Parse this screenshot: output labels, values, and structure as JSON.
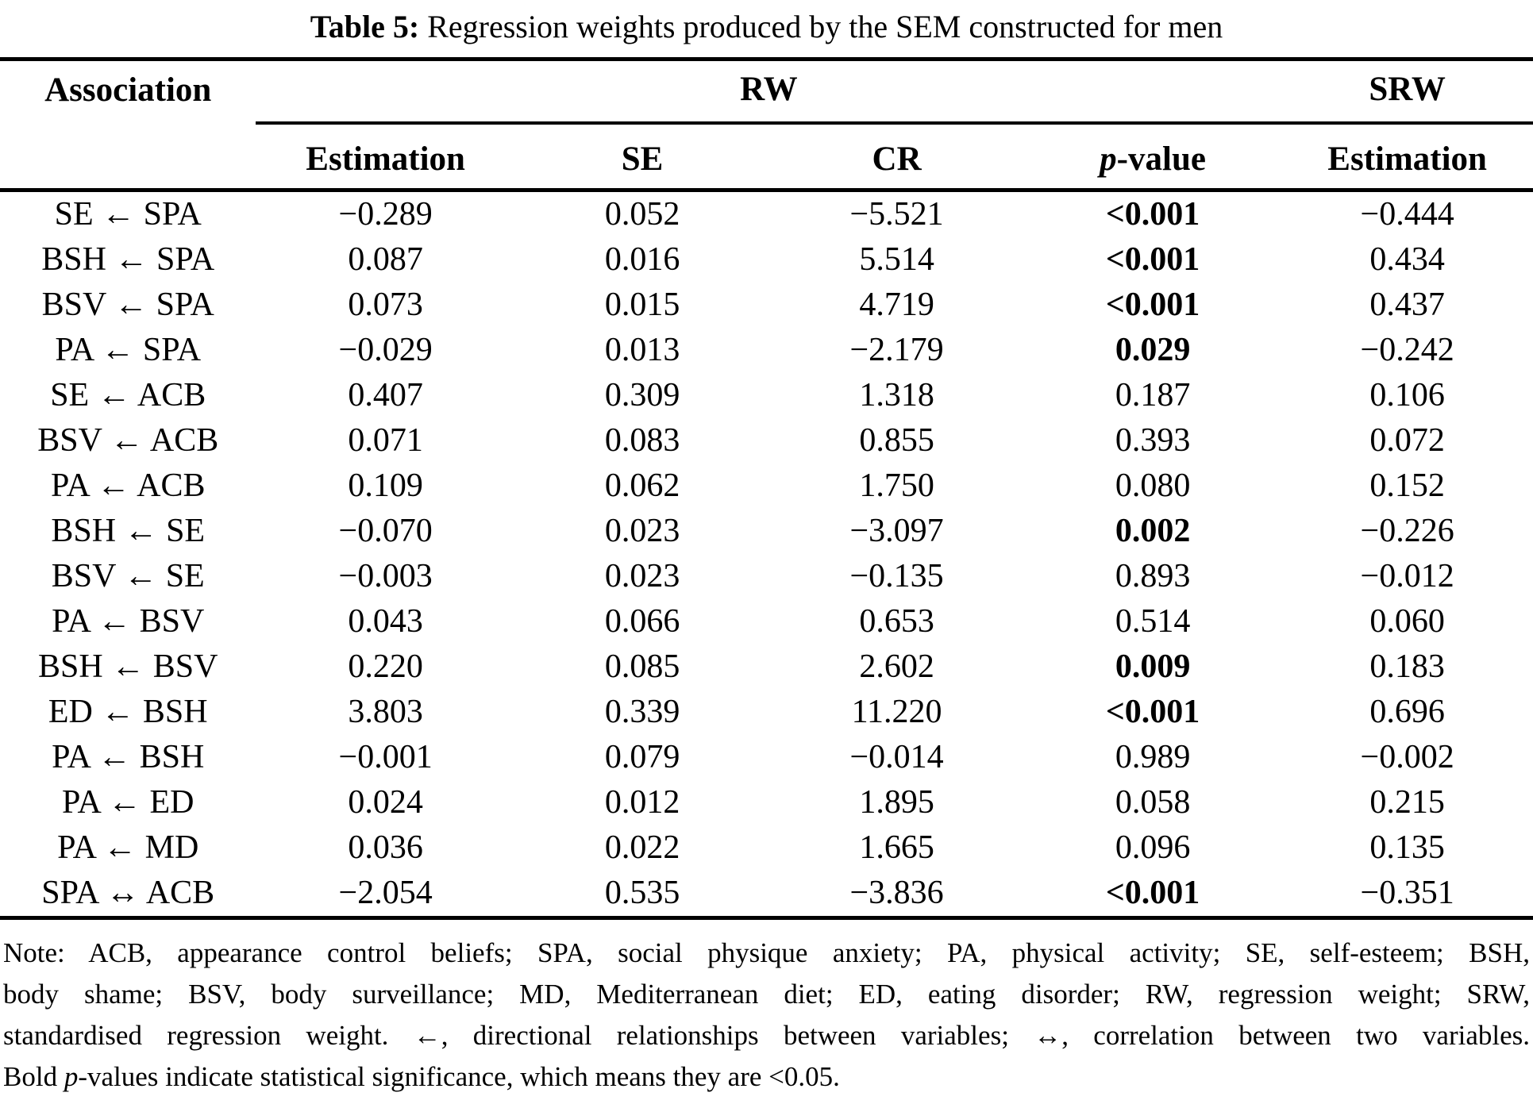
{
  "title": {
    "label": "Table 5:",
    "caption": "Regression weights produced by the SEM constructed for men"
  },
  "table": {
    "headers": {
      "association": "Association",
      "rw": "RW",
      "srw": "SRW",
      "rw_estimation": "Estimation",
      "se": "SE",
      "cr": "CR",
      "p_italic": "p",
      "p_rest": "-value",
      "srw_estimation": "Estimation"
    },
    "rows": [
      {
        "association": "SE ← SPA",
        "estimation": "−0.289",
        "se": "0.052",
        "cr": "−5.521",
        "p": "<0.001",
        "p_bold": true,
        "srw": "−0.444"
      },
      {
        "association": "BSH ← SPA",
        "estimation": "0.087",
        "se": "0.016",
        "cr": "5.514",
        "p": "<0.001",
        "p_bold": true,
        "srw": "0.434"
      },
      {
        "association": "BSV ← SPA",
        "estimation": "0.073",
        "se": "0.015",
        "cr": "4.719",
        "p": "<0.001",
        "p_bold": true,
        "srw": "0.437"
      },
      {
        "association": "PA ← SPA",
        "estimation": "−0.029",
        "se": "0.013",
        "cr": "−2.179",
        "p": "0.029",
        "p_bold": true,
        "srw": "−0.242"
      },
      {
        "association": "SE ← ACB",
        "estimation": "0.407",
        "se": "0.309",
        "cr": "1.318",
        "p": "0.187",
        "p_bold": false,
        "srw": "0.106"
      },
      {
        "association": "BSV ← ACB",
        "estimation": "0.071",
        "se": "0.083",
        "cr": "0.855",
        "p": "0.393",
        "p_bold": false,
        "srw": "0.072"
      },
      {
        "association": "PA ← ACB",
        "estimation": "0.109",
        "se": "0.062",
        "cr": "1.750",
        "p": "0.080",
        "p_bold": false,
        "srw": "0.152"
      },
      {
        "association": "BSH ← SE",
        "estimation": "−0.070",
        "se": "0.023",
        "cr": "−3.097",
        "p": "0.002",
        "p_bold": true,
        "srw": "−0.226"
      },
      {
        "association": "BSV ← SE",
        "estimation": "−0.003",
        "se": "0.023",
        "cr": "−0.135",
        "p": "0.893",
        "p_bold": false,
        "srw": "−0.012"
      },
      {
        "association": "PA ← BSV",
        "estimation": "0.043",
        "se": "0.066",
        "cr": "0.653",
        "p": "0.514",
        "p_bold": false,
        "srw": "0.060"
      },
      {
        "association": "BSH ← BSV",
        "estimation": "0.220",
        "se": "0.085",
        "cr": "2.602",
        "p": "0.009",
        "p_bold": true,
        "srw": "0.183"
      },
      {
        "association": "ED ← BSH",
        "estimation": "3.803",
        "se": "0.339",
        "cr": "11.220",
        "p": "<0.001",
        "p_bold": true,
        "srw": "0.696"
      },
      {
        "association": "PA ← BSH",
        "estimation": "−0.001",
        "se": "0.079",
        "cr": "−0.014",
        "p": "0.989",
        "p_bold": false,
        "srw": "−0.002"
      },
      {
        "association": "PA ← ED",
        "estimation": "0.024",
        "se": "0.012",
        "cr": "1.895",
        "p": "0.058",
        "p_bold": false,
        "srw": "0.215"
      },
      {
        "association": "PA ← MD",
        "estimation": "0.036",
        "se": "0.022",
        "cr": "1.665",
        "p": "0.096",
        "p_bold": false,
        "srw": "0.135"
      },
      {
        "association": "SPA ↔ ACB",
        "estimation": "−2.054",
        "se": "0.535",
        "cr": "−3.836",
        "p": "<0.001",
        "p_bold": true,
        "srw": "−0.351"
      }
    ]
  },
  "note": {
    "line1": "Note: ACB, appearance control beliefs; SPA, social physique anxiety; PA, physical activity; SE, self-esteem; BSH,",
    "line2": "body shame; BSV, body surveillance; MD, Mediterranean diet; ED, eating disorder; RW, regression weight; SRW,",
    "line3": "standardised regression weight. ←, directional relationships between variables; ↔, correlation between two variables.",
    "line4_pre": "Bold ",
    "line4_italic": "p",
    "line4_post": "-values indicate statistical significance, which means they are <0.05."
  }
}
